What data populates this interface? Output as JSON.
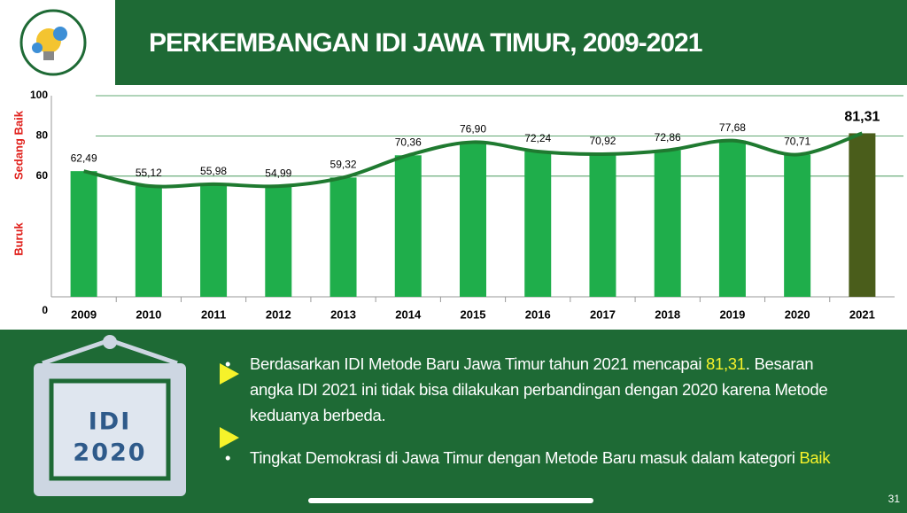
{
  "header": {
    "title": "PERKEMBANGAN IDI JAWA TIMUR, 2009-2021"
  },
  "chart_data": {
    "type": "bar",
    "categories": [
      "2009",
      "2010",
      "2011",
      "2012",
      "2013",
      "2014",
      "2015",
      "2016",
      "2017",
      "2018",
      "2019",
      "2020",
      "2021"
    ],
    "values": [
      62.49,
      55.12,
      55.98,
      54.99,
      59.32,
      70.36,
      76.9,
      72.24,
      70.92,
      72.86,
      77.68,
      70.71,
      81.31
    ],
    "value_labels": [
      "62,49",
      "55,12",
      "55,98",
      "54,99",
      "59,32",
      "70,36",
      "76,90",
      "72,24",
      "70,92",
      "72,86",
      "77,68",
      "70,71",
      "81,31"
    ],
    "colors": [
      "#1fae4b",
      "#1fae4b",
      "#1fae4b",
      "#1fae4b",
      "#1fae4b",
      "#1fae4b",
      "#1fae4b",
      "#1fae4b",
      "#1fae4b",
      "#1fae4b",
      "#1fae4b",
      "#1fae4b",
      "#4a5d1b"
    ],
    "line_color": "#1f7a30",
    "ylim": [
      0,
      100
    ],
    "yticks": [
      0,
      60,
      80,
      100
    ],
    "grid": true,
    "annotations": [
      "Sedang Baik",
      "Buruk"
    ],
    "annotation_color": "#e0201b"
  },
  "icon": {
    "lines": [
      "IDI",
      "2020"
    ]
  },
  "bullets": [
    [
      "Berdasarkan IDI Metode Baru Jawa Timur tahun 2021 mencapai ",
      "81,31",
      ". Besaran angka IDI 2021 ini tidak bisa dilakukan perbandingan dengan 2020 karena Metode keduanya berbeda."
    ],
    [
      "Tingkat Demokrasi di Jawa Timur dengan Metode Baru masuk dalam kategori ",
      "Baik"
    ]
  ],
  "page_number": "31"
}
